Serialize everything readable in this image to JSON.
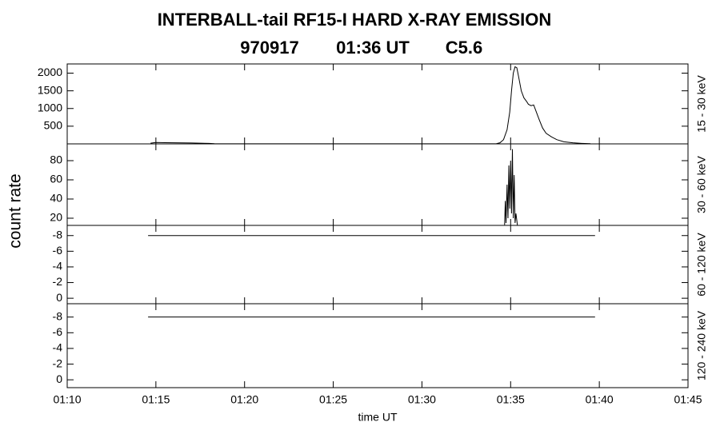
{
  "title": "INTERBALL-tail  RF15-I  HARD  X-RAY  EMISSION",
  "subtitle": [
    "970917",
    "01:36 UT",
    "C5.6"
  ],
  "ylabel": "count rate",
  "chart_data": [
    {
      "type": "line",
      "label": "15 - 30 keV",
      "ylim": [
        0,
        2260
      ],
      "yticks": [
        500,
        1000,
        1500,
        2000
      ],
      "series": [
        {
          "color": "#000000",
          "x": [
            74.7,
            75.0,
            75.5,
            76,
            77,
            78,
            78.3,
            80,
            90,
            94.2,
            94.4,
            94.6,
            94.8,
            94.95,
            95.05,
            95.15,
            95.25,
            95.35,
            95.45,
            95.6,
            95.75,
            95.9,
            96.0,
            96.15,
            96.3,
            96.45,
            96.6,
            96.8,
            97.0,
            97.3,
            97.6,
            98.0,
            98.5,
            99.0,
            99.5
          ],
          "values": [
            20,
            40,
            35,
            30,
            25,
            15,
            5,
            3,
            3,
            5,
            30,
            120,
            400,
            900,
            1500,
            2000,
            2180,
            2150,
            1900,
            1500,
            1300,
            1200,
            1120,
            1080,
            1100,
            900,
            700,
            450,
            300,
            200,
            120,
            60,
            30,
            15,
            5
          ]
        }
      ]
    },
    {
      "type": "line",
      "label": "30 - 60 keV",
      "ylim": [
        12.5,
        97.5
      ],
      "yticks": [
        20,
        40,
        60,
        80
      ],
      "series": [
        {
          "color": "#000000",
          "x": [
            94.66,
            94.7,
            94.74,
            94.8,
            94.85,
            94.9,
            94.95,
            95.0,
            95.05,
            95.1,
            95.15,
            95.2,
            95.25,
            95.3,
            95.38
          ],
          "values": [
            13,
            38,
            15,
            55,
            20,
            75,
            30,
            80,
            25,
            92,
            20,
            65,
            15,
            25,
            13
          ]
        }
      ]
    },
    {
      "type": "line",
      "label": "60 - 120 keV",
      "ylim": [
        0.7,
        -9.3
      ],
      "yticks": [
        -8,
        -6,
        -4,
        -2,
        0
      ],
      "series": [
        {
          "color": "#000000",
          "x": [
            74.56,
            99.76
          ],
          "values": [
            -8,
            -8
          ]
        }
      ]
    },
    {
      "type": "line",
      "label": "120 - 240 keV",
      "ylim": [
        1.0,
        -9.7
      ],
      "yticks": [
        -8,
        -6,
        -4,
        -2,
        0
      ],
      "series": [
        {
          "color": "#000000",
          "x": [
            74.56,
            99.76
          ],
          "values": [
            -8,
            -8
          ]
        }
      ],
      "xlabel": "time UT",
      "xlim": [
        70,
        105
      ],
      "xticks": [
        {
          "value": 70,
          "label": "01:10"
        },
        {
          "value": 75,
          "label": "01:15"
        },
        {
          "value": 80,
          "label": "01:20"
        },
        {
          "value": 85,
          "label": "01:25"
        },
        {
          "value": 90,
          "label": "01:30"
        },
        {
          "value": 95,
          "label": "01:35"
        },
        {
          "value": 100,
          "label": "01:40"
        },
        {
          "value": 105,
          "label": "01:45"
        }
      ]
    }
  ]
}
